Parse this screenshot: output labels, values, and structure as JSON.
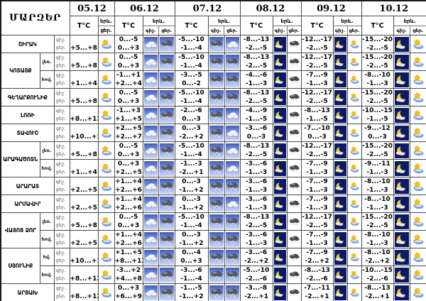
{
  "header": {
    "regions_label": "ՄԱՐԶԵՐ",
    "temp_label": "T°C",
    "phenomena_label": "երև.",
    "night_label": "գիշ.",
    "day_label": "ցեր.",
    "dates": [
      "05.12",
      "06.12",
      "07.12",
      "08.12",
      "09.12",
      "10.12"
    ]
  },
  "colors": {
    "night_cell_bg": "#0c1a66",
    "day_sky_top": "#3f5cc0",
    "day_sky_bottom": "#cdd8f2",
    "sun": "#f5bf13",
    "moon": "#eecf1b"
  },
  "rows": [
    {
      "region": "ՇԻՐԱԿ",
      "region_span": 1,
      "sub": "",
      "cells": [
        {
          "day": "+5...+8",
          "day_icon": "sun-cloud"
        },
        {
          "night": "0...-5",
          "day": "0...+3",
          "night_icon": "cloud",
          "day_icon": "snow-cloud"
        },
        {
          "night": "-5...-10",
          "day": "-1...-4",
          "night_icon": "snow-cloud",
          "day_icon": "cloud"
        },
        {
          "night": "-8...-13",
          "day": "-2...-5",
          "night_icon": "moon-cloud",
          "day_icon": "dark-snow-cloud"
        },
        {
          "night": "-12...-17",
          "day": "-2...-5",
          "night_icon": "moon-cloud",
          "day_icon": "sun-cloud"
        },
        {
          "night": "-15...-20",
          "day": "-2...-5",
          "night_icon": "moon-cloud",
          "day_icon": "sun-cloud"
        }
      ]
    },
    {
      "region": "ԿՈՏԱՅՔ",
      "region_span": 2,
      "sub": "լեռ.",
      "cells": [
        {
          "day": "+5...+8",
          "day_icon": "sun-cloud"
        },
        {
          "night": "0...-5",
          "day": "0...+3",
          "night_icon": "cloud",
          "day_icon": "snow-cloud"
        },
        {
          "night": "-5...-10",
          "day": "-1...-4",
          "night_icon": "snow-cloud",
          "day_icon": "snow-cloud"
        },
        {
          "night": "-8...-13",
          "day": "-2...-5",
          "night_icon": "moon-cloud",
          "day_icon": "dark-snow-cloud"
        },
        {
          "night": "-12...-17",
          "day": "-2...-5",
          "night_icon": "moon-cloud",
          "day_icon": "sun-cloud"
        },
        {
          "night": "-15...-20",
          "day": "-2...-5",
          "night_icon": "moon-cloud",
          "day_icon": "sun-cloud"
        }
      ]
    },
    {
      "region": null,
      "region_span": 0,
      "sub": "հով.",
      "cells": [
        {
          "day": "+1...+4",
          "day_icon": "sun-cloud"
        },
        {
          "night": "-1...+1",
          "day": "+2...+4",
          "night_icon": "cloud",
          "day_icon": "snow-cloud"
        },
        {
          "night": "-3...-5",
          "day": "0...-2",
          "night_icon": "snow-cloud",
          "day_icon": "snow-cloud"
        },
        {
          "night": "-4...-6",
          "day": "-1...-3",
          "night_icon": "moon-cloud",
          "day_icon": "dark-snow-cloud"
        },
        {
          "night": "-7...-9",
          "day": "-1...-3",
          "night_icon": "moon-cloud",
          "day_icon": "sun-cloud"
        },
        {
          "night": "-8...-10",
          "day": "-1...-3",
          "night_icon": "moon-cloud",
          "day_icon": "sun-cloud"
        }
      ]
    },
    {
      "region": "ԳԵՂԱՐՔՈՒՆԻՔ",
      "region_span": 1,
      "sub": "",
      "cells": [
        {
          "day": "+5...+8",
          "day_icon": "sun-cloud"
        },
        {
          "night": "0...-5",
          "day": "0...+3",
          "night_icon": "cloud",
          "day_icon": "snow-cloud"
        },
        {
          "night": "-5...-10",
          "day": "-1...-4",
          "night_icon": "snow-cloud",
          "day_icon": "snow-cloud"
        },
        {
          "night": "-8...-13",
          "day": "-2...-5",
          "night_icon": "moon-cloud",
          "day_icon": "dark-snow-cloud"
        },
        {
          "night": "-12...-17",
          "day": "-2...-5",
          "night_icon": "moon-cloud",
          "day_icon": "sun-cloud"
        },
        {
          "night": "-15...-20",
          "day": "-2...-5",
          "night_icon": "moon-cloud",
          "day_icon": "sun-cloud"
        }
      ]
    },
    {
      "region": "ԼՈՌԻ",
      "region_span": 1,
      "sub": "",
      "cells": [
        {
          "day": "+8...+13",
          "day_icon": "sun-cloud"
        },
        {
          "night": "-1...+3",
          "day": "+1...+5",
          "night_icon": "cloud",
          "day_icon": "snow-cloud"
        },
        {
          "night": "-2...-6",
          "day": "0...-3",
          "night_icon": "snow-cloud",
          "day_icon": "cloud"
        },
        {
          "night": "-4...-9",
          "day": "-1...-5",
          "night_icon": "moon-cloud",
          "day_icon": "dark-snow-cloud"
        },
        {
          "night": "-8...-13",
          "day": "-1...-5",
          "night_icon": "moon-cloud",
          "day_icon": "sun-cloud"
        },
        {
          "night": "-10...-15",
          "day": "-1...-5",
          "night_icon": "moon-cloud",
          "day_icon": "sun-cloud"
        }
      ]
    },
    {
      "region": "ՏԱՎՈՒՇ",
      "region_span": 1,
      "sub": "",
      "cells": [
        {
          "day": "+10...+15",
          "day_icon": "sun-cloud"
        },
        {
          "night": "+2...+5",
          "day": "+2...+7",
          "night_icon": "cloud",
          "day_icon": "snow-cloud"
        },
        {
          "night": "0...-3",
          "day": "-2...+2",
          "night_icon": "snow-cloud",
          "day_icon": "cloud"
        },
        {
          "night": "-3...-6",
          "day": "0...-3",
          "night_icon": "moon-cloud",
          "day_icon": "dark-snow-cloud"
        },
        {
          "night": "-7...-10",
          "day": "0...-3",
          "night_icon": "moon-cloud",
          "day_icon": "sun-cloud"
        },
        {
          "night": "-9...-12",
          "day": "0...-3",
          "night_icon": "moon-cloud",
          "day_icon": "sun-cloud"
        }
      ]
    },
    {
      "region": "ԱՐԱԳԱԾՈՏՆ",
      "region_span": 2,
      "sub": "լեռ.",
      "cells": [
        {
          "day": "+5...+8",
          "day_icon": "sun-cloud"
        },
        {
          "night": "0...-5",
          "day": "0...+3",
          "night_icon": "cloud",
          "day_icon": "snow-cloud"
        },
        {
          "night": "-5...-10",
          "day": "-1...-4",
          "night_icon": "snow-cloud",
          "day_icon": "cloud"
        },
        {
          "night": "-8...-13",
          "day": "-2...-5",
          "night_icon": "moon-cloud",
          "day_icon": "dark-snow-cloud"
        },
        {
          "night": "-12...-17",
          "day": "-2...-5",
          "night_icon": "moon-cloud",
          "day_icon": "sun-cloud"
        },
        {
          "night": "-15...-20",
          "day": "-2...-5",
          "night_icon": "moon-cloud",
          "day_icon": "sun-cloud"
        }
      ]
    },
    {
      "region": null,
      "region_span": 0,
      "sub": "հով.",
      "cells": [
        {
          "day": "+1...+4",
          "day_icon": "sun-cloud"
        },
        {
          "night": "0...+3",
          "day": "+2...+5",
          "night_icon": "cloud",
          "day_icon": "snow-cloud"
        },
        {
          "night": "-1...-3",
          "day": "-2...+1",
          "night_icon": "snow-cloud",
          "day_icon": "cloud"
        },
        {
          "night": "-3...-6",
          "day": "-1...-3",
          "night_icon": "moon-cloud",
          "day_icon": "dark-snow-cloud"
        },
        {
          "night": "-7...-9",
          "day": "-1...-3",
          "night_icon": "moon-cloud",
          "day_icon": "sun-cloud"
        },
        {
          "night": "-9...-11",
          "day": "-1...-3",
          "night_icon": "moon-cloud",
          "day_icon": "sun-cloud"
        }
      ]
    },
    {
      "region": "ԱՐԱՐԱՏ",
      "region_span": 1,
      "sub": "",
      "cells": [
        {
          "day": "+2...+5",
          "day_icon": "sun-cloud"
        },
        {
          "night": "+1...+4",
          "day": "+2...+6",
          "night_icon": "cloud",
          "day_icon": "snow-cloud"
        },
        {
          "night": "0...-3",
          "day": "-1...+2",
          "night_icon": "snow-cloud",
          "day_icon": "snow-cloud"
        },
        {
          "night": "-3...-6",
          "day": "-1...-3",
          "night_icon": "moon-cloud",
          "day_icon": "dark-snow-cloud"
        },
        {
          "night": "-7...-9",
          "day": "-1...-3",
          "night_icon": "moon-cloud",
          "day_icon": "sun-cloud"
        },
        {
          "night": "-8...-10",
          "day": "-1...-3",
          "night_icon": "moon-cloud",
          "day_icon": "sun-cloud"
        }
      ]
    },
    {
      "region": "ԱՐՄԱՎԻՐ",
      "region_span": 1,
      "sub": "",
      "cells": [
        {
          "day": "+2...+5",
          "day_icon": "sun-cloud"
        },
        {
          "night": "+1...+4",
          "day": "+2...+6",
          "night_icon": "cloud",
          "day_icon": "snow-cloud"
        },
        {
          "night": "0...-3",
          "day": "-1...+2",
          "night_icon": "snow-cloud",
          "day_icon": "cloud"
        },
        {
          "night": "-3...-6",
          "day": "-1...-3",
          "night_icon": "moon-cloud",
          "day_icon": "dark-snow-cloud"
        },
        {
          "night": "-7...-9",
          "day": "-1...-3",
          "night_icon": "moon-cloud",
          "day_icon": "sun-cloud"
        },
        {
          "night": "-8...-10",
          "day": "-1...-3",
          "night_icon": "moon-cloud",
          "day_icon": "sun-cloud"
        }
      ]
    },
    {
      "region": "ՎԱՅՈՑ ՁՈՐ",
      "region_span": 2,
      "sub": "լեռ.",
      "cells": [
        {
          "day": "+5...+8",
          "day_icon": "sun-cloud"
        },
        {
          "night": "0...-5",
          "day": "0...+3",
          "night_icon": "cloud",
          "day_icon": "snow-cloud"
        },
        {
          "night": "-5...-10",
          "day": "-1...-4",
          "night_icon": "snow-cloud",
          "day_icon": "snow-cloud"
        },
        {
          "night": "-8...-13",
          "day": "-2...-5",
          "night_icon": "moon-cloud",
          "day_icon": "dark-snow-cloud"
        },
        {
          "night": "-12...-17",
          "day": "-2...-5",
          "night_icon": "moon-cloud",
          "day_icon": "sun-cloud"
        },
        {
          "night": "-15...-20",
          "day": "-2...-5",
          "night_icon": "moon-cloud",
          "day_icon": "sun-cloud"
        }
      ]
    },
    {
      "region": null,
      "region_span": 0,
      "sub": "հով.",
      "cells": [
        {
          "day": "+2...+5",
          "day_icon": "sun-cloud"
        },
        {
          "night": "+1...+4",
          "day": "+2...+6",
          "night_icon": "cloud",
          "day_icon": "snow-cloud"
        },
        {
          "night": "0...-3",
          "day": "-1...+2",
          "night_icon": "snow-cloud",
          "day_icon": "snow-cloud"
        },
        {
          "night": "-3...-6",
          "day": "-1...-3",
          "night_icon": "moon-cloud",
          "day_icon": "dark-snow-cloud"
        },
        {
          "night": "-7...-9",
          "day": "-1...-3",
          "night_icon": "moon-cloud",
          "day_icon": "sun-cloud"
        },
        {
          "night": "-8...-10",
          "day": "-1...-3",
          "night_icon": "moon-cloud",
          "day_icon": "sun-cloud"
        }
      ]
    },
    {
      "region": "ՍՅՈՒՆԻՔ",
      "region_span": 2,
      "sub": "հվ.",
      "cells": [
        {
          "day": "+10...+14",
          "day_icon": "sun-cloud"
        },
        {
          "night": "+1...+5",
          "day": "+8...+12",
          "night_icon": "cloud",
          "day_icon": "snow-cloud"
        },
        {
          "night": "0...-4",
          "day": "0...+3",
          "night_icon": "snow-cloud",
          "day_icon": "snow-cloud"
        },
        {
          "night": "-3...-6",
          "day": "-2...+2",
          "night_icon": "moon-cloud",
          "day_icon": "dark-snow-cloud"
        },
        {
          "night": "-7...-9",
          "day": "-2...+2",
          "night_icon": "moon-cloud",
          "day_icon": "sun-cloud"
        },
        {
          "night": "-8...-10",
          "day": "-2...+2",
          "night_icon": "moon-cloud",
          "day_icon": "sun-cloud"
        }
      ]
    },
    {
      "region": null,
      "region_span": 0,
      "sub": "հով.",
      "cells": [
        {
          "day": "+8...+12",
          "day_icon": "sun-cloud"
        },
        {
          "night": "-3...+2",
          "day": "+4...+8",
          "night_icon": "cloud",
          "day_icon": "snow-cloud"
        },
        {
          "night": "-3...-6",
          "day": "-1...-4",
          "night_icon": "snow-cloud",
          "day_icon": "snow-cloud"
        },
        {
          "night": "-5...-10",
          "day": "-2...-6",
          "night_icon": "moon-cloud",
          "day_icon": "dark-snow-cloud"
        },
        {
          "night": "-8...-13",
          "day": "-2...-6",
          "night_icon": "moon-cloud",
          "day_icon": "sun-cloud"
        },
        {
          "night": "-10...-15",
          "day": "-2...-6",
          "night_icon": "moon-cloud",
          "day_icon": "sun-cloud"
        }
      ]
    },
    {
      "region": "ԱՐՑԱԽ",
      "region_span": 1,
      "sub": "",
      "cells": [
        {
          "day": "+8...+12",
          "day_icon": "sun-cloud"
        },
        {
          "night": "0...+3",
          "day": "+6...+9",
          "night_icon": "cloud",
          "day_icon": "snow-cloud"
        },
        {
          "night": "-1...-5",
          "day": "-1...+2",
          "night_icon": "snow-cloud",
          "day_icon": "snow-cloud"
        },
        {
          "night": "-3...-8",
          "day": "-2...+1",
          "night_icon": "moon-cloud",
          "day_icon": "dark-snow-cloud"
        },
        {
          "night": "-7...-11",
          "day": "-2...+1",
          "night_icon": "moon-cloud",
          "day_icon": "sun-cloud"
        },
        {
          "night": "-8...-13",
          "day": "-2...+1",
          "night_icon": "moon-cloud",
          "day_icon": "sun-cloud"
        }
      ]
    }
  ]
}
